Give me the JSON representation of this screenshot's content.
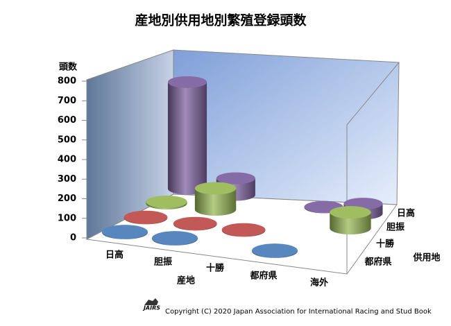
{
  "chart_data": {
    "type": "bar3d-cylinder",
    "title": "産地別供用地別繁殖登録頭数",
    "y_axis_title": "頭数",
    "x_axis_title": "産地",
    "z_axis_title": "供用地",
    "categories": [
      "日高",
      "胆振",
      "十勝",
      "都府県",
      "海外"
    ],
    "series": [
      {
        "name": "都府県",
        "color": "#4f81bd",
        "values": [
          3,
          3,
          null,
          3,
          null
        ]
      },
      {
        "name": "十勝",
        "color": "#c0504d",
        "values": [
          3,
          3,
          3,
          null,
          null
        ]
      },
      {
        "name": "胆振",
        "color": "#9bbb59",
        "values": [
          8,
          120,
          null,
          null,
          90
        ]
      },
      {
        "name": "日高",
        "color": "#8064a2",
        "values": [
          640,
          100,
          null,
          3,
          60
        ]
      }
    ],
    "ylim": [
      0,
      800
    ],
    "yticks": [
      0,
      100,
      200,
      300,
      400,
      500,
      600,
      700,
      800
    ],
    "footer": "Copyright (C) 2020 Japan Association for International Racing and Stud Book",
    "logo_text": "JAIRS"
  }
}
